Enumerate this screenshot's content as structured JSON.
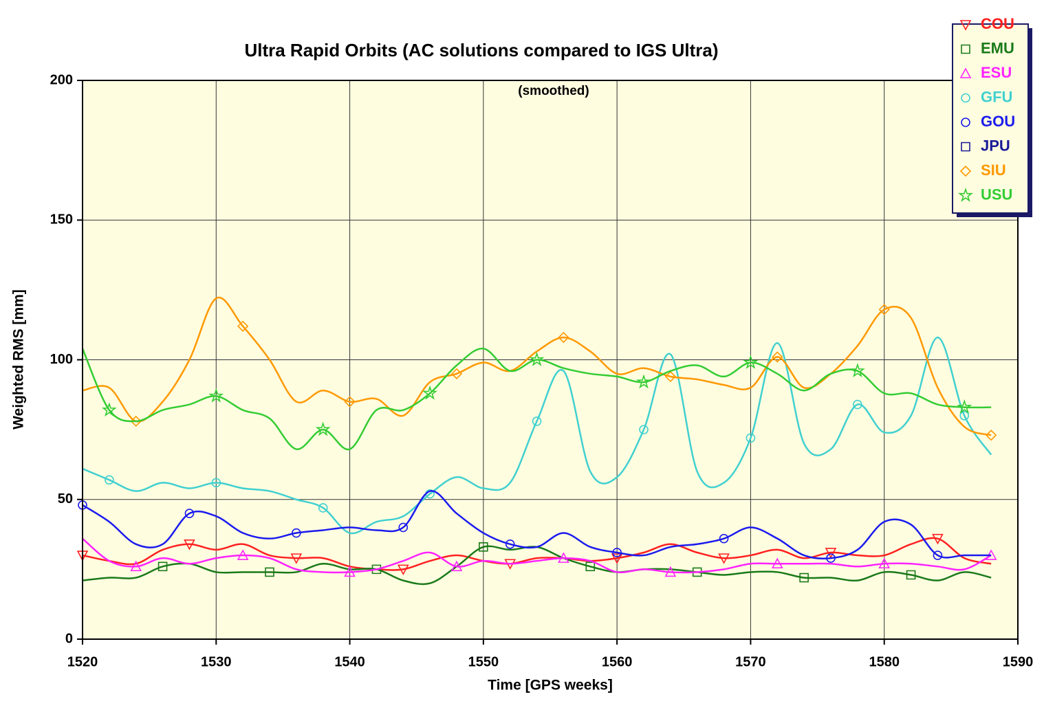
{
  "chart_data": {
    "type": "line",
    "title": "Ultra Rapid Orbits (AC solutions compared to IGS Ultra)",
    "subtitle": "(smoothed)",
    "x_label": "Time [GPS weeks]",
    "y_label": "Weighted RMS [mm]",
    "xlim": [
      1520,
      1590
    ],
    "xticks": [
      1520,
      1530,
      1540,
      1550,
      1560,
      1570,
      1580,
      1590
    ],
    "ylim": [
      0,
      200
    ],
    "yticks": [
      0,
      50,
      100,
      150,
      200
    ],
    "grid": true,
    "legend": "top-right",
    "x": [
      1520,
      1522,
      1524,
      1526,
      1528,
      1530,
      1532,
      1534,
      1536,
      1538,
      1540,
      1542,
      1544,
      1546,
      1548,
      1550,
      1552,
      1554,
      1556,
      1558,
      1560,
      1562,
      1564,
      1566,
      1568,
      1570,
      1572,
      1574,
      1576,
      1578,
      1580,
      1582,
      1584,
      1586,
      1588
    ],
    "series": [
      {
        "name": "COU",
        "color": "#ff2020",
        "marker": "triangle-down",
        "values": [
          30,
          28,
          27,
          32,
          34,
          32,
          34,
          30,
          29,
          29,
          26,
          25,
          25,
          28,
          30,
          28,
          27,
          29,
          29,
          28,
          29,
          31,
          34,
          31,
          29,
          30,
          32,
          29,
          31,
          30,
          30,
          34,
          36,
          29,
          27
        ]
      },
      {
        "name": "EMU",
        "color": "#1a7a1a",
        "marker": "square",
        "values": [
          21,
          22,
          22,
          26,
          27,
          24,
          24,
          24,
          24,
          27,
          25,
          25,
          21,
          20,
          26,
          33,
          32,
          33,
          29,
          26,
          24,
          25,
          25,
          24,
          23,
          24,
          24,
          22,
          22,
          21,
          24,
          23,
          21,
          24,
          22
        ]
      },
      {
        "name": "ESU",
        "color": "#ff22ff",
        "marker": "triangle-up",
        "values": [
          36,
          28,
          26,
          29,
          27,
          29,
          30,
          29,
          25,
          24,
          24,
          25,
          28,
          31,
          26,
          28,
          27,
          28,
          29,
          28,
          24,
          25,
          24,
          24,
          25,
          27,
          27,
          27,
          27,
          26,
          27,
          27,
          26,
          25,
          30
        ]
      },
      {
        "name": "GFU",
        "color": "#40d0d0",
        "marker": "circle",
        "values": [
          61,
          57,
          53,
          56,
          54,
          56,
          54,
          53,
          50,
          47,
          38,
          42,
          44,
          52,
          58,
          54,
          56,
          78,
          96,
          60,
          58,
          75,
          102,
          60,
          56,
          72,
          106,
          70,
          68,
          84,
          74,
          80,
          108,
          80,
          66
        ]
      },
      {
        "name": "GOU",
        "color": "#1a1aee",
        "marker": "circle",
        "values": [
          48,
          42,
          34,
          34,
          45,
          44,
          38,
          36,
          38,
          39,
          40,
          39,
          40,
          53,
          45,
          38,
          34,
          33,
          38,
          33,
          31,
          30,
          33,
          34,
          36,
          40,
          36,
          30,
          29,
          32,
          42,
          41,
          30,
          30,
          30
        ]
      },
      {
        "name": "JPU",
        "color": "#1a1a99",
        "marker": "square",
        "values": [
          null,
          null,
          null,
          null,
          null,
          null,
          null,
          null,
          null,
          null,
          null,
          null,
          null,
          null,
          null,
          null,
          null,
          null,
          null,
          null,
          null,
          null,
          null,
          null,
          null,
          null,
          null,
          null,
          null,
          null,
          null,
          null,
          null,
          null,
          null
        ]
      },
      {
        "name": "SIU",
        "color": "#ff9900",
        "marker": "diamond",
        "values": [
          89,
          90,
          78,
          85,
          100,
          122,
          112,
          100,
          85,
          89,
          85,
          86,
          80,
          92,
          95,
          99,
          96,
          103,
          108,
          103,
          95,
          97,
          94,
          93,
          91,
          90,
          101,
          90,
          95,
          105,
          118,
          115,
          90,
          76,
          73
        ]
      },
      {
        "name": "USU",
        "color": "#33cc33",
        "marker": "star",
        "values": [
          104,
          82,
          78,
          82,
          84,
          87,
          82,
          79,
          68,
          75,
          68,
          82,
          82,
          88,
          98,
          104,
          96,
          100,
          97,
          95,
          94,
          92,
          96,
          98,
          94,
          99,
          95,
          89,
          95,
          96,
          88,
          88,
          84,
          83,
          83
        ]
      }
    ]
  }
}
